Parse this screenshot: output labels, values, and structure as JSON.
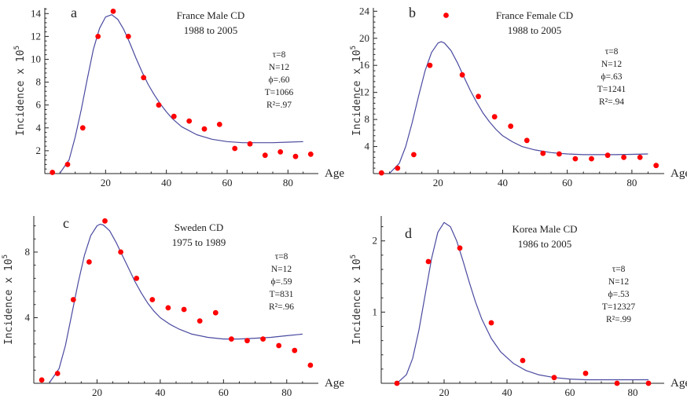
{
  "chart_data": [
    {
      "type": "scatter",
      "panel_label": "a",
      "title": "France Male CD",
      "subtitle": "1988 to 2005",
      "ylabel": "Incidence x 10",
      "ylabel_exp": "5",
      "xlabel": "Age",
      "xlim": [
        0,
        90
      ],
      "ylim": [
        0,
        14.5
      ],
      "xticks": [
        20,
        40,
        60,
        80
      ],
      "yticks": [
        2,
        4,
        6,
        8,
        10,
        12,
        14
      ],
      "params": [
        "τ=8",
        "N=12",
        "ϕ=.60",
        "T=1066",
        "R²=.97"
      ],
      "colors": {
        "points": "#ff0000",
        "curve": "#4a4aa0"
      },
      "points": [
        [
          2.5,
          0.1
        ],
        [
          7.5,
          0.8
        ],
        [
          12.5,
          4.0
        ],
        [
          17.5,
          12.0
        ],
        [
          22.5,
          14.2
        ],
        [
          27.5,
          12.0
        ],
        [
          32.5,
          8.4
        ],
        [
          37.5,
          6.0
        ],
        [
          42.5,
          5.0
        ],
        [
          47.5,
          4.6
        ],
        [
          52.5,
          3.9
        ],
        [
          57.5,
          4.3
        ],
        [
          62.5,
          2.2
        ],
        [
          67.5,
          2.6
        ],
        [
          72.5,
          1.6
        ],
        [
          77.5,
          1.9
        ],
        [
          82.5,
          1.5
        ],
        [
          87.5,
          1.7
        ]
      ],
      "curve": [
        [
          5,
          0.05
        ],
        [
          8,
          1.2
        ],
        [
          10,
          3.2
        ],
        [
          12,
          5.6
        ],
        [
          14,
          8.3
        ],
        [
          16,
          10.9
        ],
        [
          18,
          12.7
        ],
        [
          20,
          13.7
        ],
        [
          22,
          13.9
        ],
        [
          24,
          13.5
        ],
        [
          26,
          12.6
        ],
        [
          28,
          11.4
        ],
        [
          30,
          10.1
        ],
        [
          32,
          8.9
        ],
        [
          34,
          7.8
        ],
        [
          36,
          6.9
        ],
        [
          38,
          6.1
        ],
        [
          40,
          5.4
        ],
        [
          42,
          4.8
        ],
        [
          45,
          4.1
        ],
        [
          50,
          3.4
        ],
        [
          55,
          3.0
        ],
        [
          60,
          2.8
        ],
        [
          65,
          2.7
        ],
        [
          70,
          2.7
        ],
        [
          75,
          2.7
        ],
        [
          80,
          2.75
        ],
        [
          85,
          2.8
        ]
      ]
    },
    {
      "type": "scatter",
      "panel_label": "b",
      "title": "France Female CD",
      "subtitle": "1988 to 2005",
      "ylabel": "Incidence x 10",
      "ylabel_exp": "5",
      "xlabel": "Age",
      "xlim": [
        0,
        90
      ],
      "ylim": [
        0,
        24.5
      ],
      "xticks": [
        20,
        40,
        60,
        80
      ],
      "yticks": [
        4,
        8,
        12,
        16,
        20,
        24
      ],
      "params": [
        "τ=8",
        "N=12",
        "ϕ=.63",
        "T=1241",
        "R²=.94"
      ],
      "colors": {
        "points": "#ff0000",
        "curve": "#4a4aa0"
      },
      "points": [
        [
          2.5,
          0.1
        ],
        [
          7.5,
          0.8
        ],
        [
          12.5,
          2.8
        ],
        [
          17.5,
          16.0
        ],
        [
          22.5,
          23.4
        ],
        [
          27.5,
          14.6
        ],
        [
          32.5,
          11.4
        ],
        [
          37.5,
          8.4
        ],
        [
          42.5,
          7.0
        ],
        [
          47.5,
          4.9
        ],
        [
          52.5,
          3.0
        ],
        [
          57.5,
          2.9
        ],
        [
          62.5,
          2.2
        ],
        [
          67.5,
          2.2
        ],
        [
          72.5,
          2.7
        ],
        [
          77.5,
          2.4
        ],
        [
          82.5,
          2.4
        ],
        [
          87.5,
          1.2
        ]
      ],
      "curve": [
        [
          5,
          0.05
        ],
        [
          8,
          1.5
        ],
        [
          10,
          4.0
        ],
        [
          12,
          7.5
        ],
        [
          14,
          11.5
        ],
        [
          16,
          15.2
        ],
        [
          18,
          17.9
        ],
        [
          20,
          19.3
        ],
        [
          21,
          19.5
        ],
        [
          22,
          19.3
        ],
        [
          24,
          18.2
        ],
        [
          26,
          16.4
        ],
        [
          28,
          14.3
        ],
        [
          30,
          12.3
        ],
        [
          32,
          10.5
        ],
        [
          34,
          8.9
        ],
        [
          36,
          7.6
        ],
        [
          38,
          6.5
        ],
        [
          40,
          5.6
        ],
        [
          43,
          4.7
        ],
        [
          46,
          4.0
        ],
        [
          50,
          3.5
        ],
        [
          55,
          3.1
        ],
        [
          60,
          2.9
        ],
        [
          65,
          2.8
        ],
        [
          70,
          2.8
        ],
        [
          75,
          2.8
        ],
        [
          80,
          2.85
        ],
        [
          85,
          2.9
        ]
      ]
    },
    {
      "type": "scatter",
      "panel_label": "c",
      "title": "Sweden CD",
      "subtitle": "1975 to 1989",
      "ylabel": "Incidence x 10",
      "ylabel_exp": "5",
      "xlabel": "Age",
      "xlim": [
        0,
        90
      ],
      "ylim": [
        0,
        10.2
      ],
      "xticks": [
        20,
        40,
        60,
        80
      ],
      "yticks": [
        4,
        8
      ],
      "params": [
        "τ=8",
        "N=12",
        "ϕ=.59",
        "T=831",
        "R²=.96"
      ],
      "colors": {
        "points": "#ff0000",
        "curve": "#4a4aa0"
      },
      "points": [
        [
          2.5,
          0.2
        ],
        [
          7.5,
          0.6
        ],
        [
          12.5,
          5.1
        ],
        [
          17.5,
          7.4
        ],
        [
          22.5,
          9.9
        ],
        [
          27.5,
          8.0
        ],
        [
          32.5,
          6.4
        ],
        [
          37.5,
          5.1
        ],
        [
          42.5,
          4.6
        ],
        [
          47.5,
          4.5
        ],
        [
          52.5,
          3.8
        ],
        [
          57.5,
          4.3
        ],
        [
          62.5,
          2.7
        ],
        [
          67.5,
          2.6
        ],
        [
          72.5,
          2.7
        ],
        [
          77.5,
          2.3
        ],
        [
          82.5,
          2.0
        ],
        [
          87.5,
          1.1
        ]
      ],
      "curve": [
        [
          5,
          0.05
        ],
        [
          8,
          0.9
        ],
        [
          10,
          2.3
        ],
        [
          12,
          4.2
        ],
        [
          14,
          6.1
        ],
        [
          16,
          7.8
        ],
        [
          18,
          9.0
        ],
        [
          20,
          9.6
        ],
        [
          21,
          9.7
        ],
        [
          22,
          9.65
        ],
        [
          24,
          9.3
        ],
        [
          26,
          8.6
        ],
        [
          28,
          7.8
        ],
        [
          30,
          7.0
        ],
        [
          32,
          6.2
        ],
        [
          34,
          5.5
        ],
        [
          36,
          4.9
        ],
        [
          38,
          4.4
        ],
        [
          40,
          4.0
        ],
        [
          43,
          3.6
        ],
        [
          46,
          3.3
        ],
        [
          50,
          3.0
        ],
        [
          55,
          2.8
        ],
        [
          60,
          2.7
        ],
        [
          65,
          2.7
        ],
        [
          70,
          2.75
        ],
        [
          75,
          2.8
        ],
        [
          80,
          2.9
        ],
        [
          85,
          3.0
        ]
      ]
    },
    {
      "type": "scatter",
      "panel_label": "d",
      "title": "Korea Male CD",
      "subtitle": "1986 to 2005",
      "ylabel": "Incidence x 10",
      "ylabel_exp": "5",
      "xlabel": "Age",
      "xlim": [
        0,
        90
      ],
      "ylim": [
        0,
        2.35
      ],
      "xticks": [
        20,
        40,
        60,
        80
      ],
      "yticks": [
        1,
        2
      ],
      "params": [
        "τ=8",
        "N=12",
        "ϕ=.53",
        "T=12327",
        "R²=.99"
      ],
      "colors": {
        "points": "#ff0000",
        "curve": "#4a4aa0"
      },
      "points": [
        [
          5,
          0.0
        ],
        [
          15,
          1.71
        ],
        [
          25,
          1.9
        ],
        [
          35,
          0.85
        ],
        [
          45,
          0.32
        ],
        [
          55,
          0.08
        ],
        [
          65,
          0.14
        ],
        [
          75,
          0.0
        ],
        [
          85,
          0.0
        ]
      ],
      "curve": [
        [
          5,
          0.0
        ],
        [
          8,
          0.12
        ],
        [
          10,
          0.35
        ],
        [
          12,
          0.75
        ],
        [
          14,
          1.25
        ],
        [
          16,
          1.75
        ],
        [
          18,
          2.12
        ],
        [
          20,
          2.26
        ],
        [
          22,
          2.2
        ],
        [
          24,
          2.0
        ],
        [
          26,
          1.72
        ],
        [
          28,
          1.42
        ],
        [
          30,
          1.14
        ],
        [
          32,
          0.9
        ],
        [
          35,
          0.63
        ],
        [
          38,
          0.44
        ],
        [
          42,
          0.28
        ],
        [
          46,
          0.18
        ],
        [
          50,
          0.12
        ],
        [
          55,
          0.08
        ],
        [
          60,
          0.06
        ],
        [
          65,
          0.05
        ],
        [
          70,
          0.05
        ],
        [
          75,
          0.05
        ],
        [
          80,
          0.05
        ],
        [
          85,
          0.05
        ]
      ]
    }
  ]
}
